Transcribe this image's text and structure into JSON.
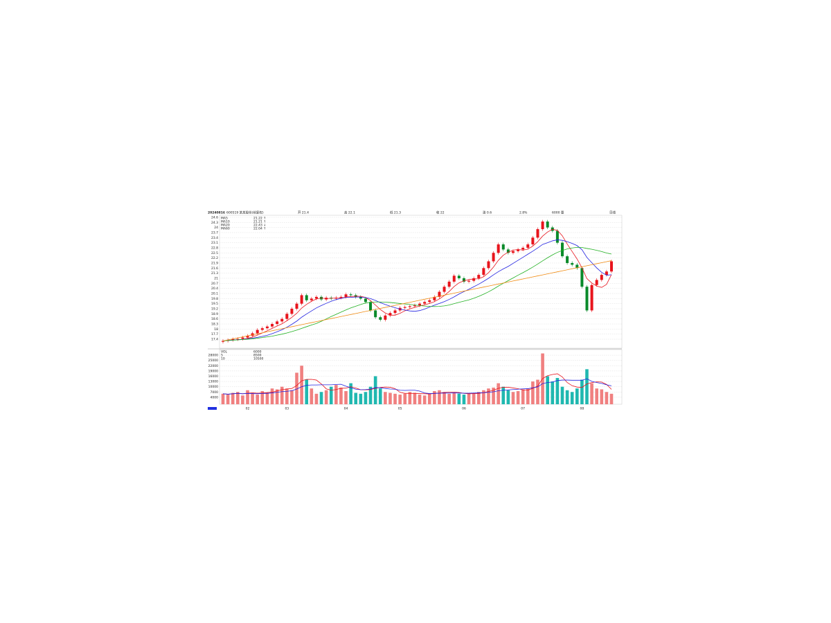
{
  "chart_data": {
    "type": "candlestick",
    "title": "20240816",
    "subtitle": "600519 某某股份(前复权)",
    "header": [
      "开 21.4",
      "高 22.1",
      "低 21.3",
      "收 22",
      "涨 0.6",
      "2.8%",
      "6000 量"
    ],
    "period": "日线",
    "categories": [
      null,
      null,
      null,
      null,
      null,
      "02",
      null,
      null,
      null,
      null,
      null,
      null,
      null,
      "03",
      null,
      null,
      null,
      null,
      null,
      null,
      null,
      null,
      null,
      null,
      null,
      "04",
      null,
      null,
      null,
      null,
      null,
      null,
      null,
      null,
      null,
      null,
      "05",
      null,
      null,
      null,
      null,
      null,
      null,
      null,
      null,
      null,
      null,
      null,
      null,
      "06",
      null,
      null,
      null,
      null,
      null,
      null,
      null,
      null,
      null,
      null,
      null,
      "07",
      null,
      null,
      null,
      null,
      null,
      null,
      null,
      null,
      null,
      null,
      null,
      "08",
      null,
      null,
      null,
      null,
      null,
      null
    ],
    "open": [
      17.25,
      17.3,
      17.35,
      17.4,
      17.42,
      17.5,
      17.6,
      17.75,
      17.95,
      18.05,
      18.15,
      18.3,
      18.45,
      18.6,
      18.9,
      19.2,
      19.5,
      20.0,
      19.7,
      19.8,
      19.9,
      19.75,
      19.85,
      19.8,
      19.85,
      19.9,
      20.05,
      20.0,
      19.9,
      19.8,
      19.6,
      19.1,
      18.7,
      18.55,
      18.8,
      18.95,
      19.1,
      19.25,
      19.3,
      19.35,
      19.4,
      19.5,
      19.6,
      19.7,
      19.9,
      20.2,
      20.5,
      20.8,
      21.15,
      21.0,
      20.8,
      20.85,
      21.0,
      21.2,
      21.6,
      22.0,
      22.5,
      23.0,
      22.7,
      22.5,
      22.6,
      22.7,
      22.8,
      23.0,
      23.4,
      23.9,
      24.35,
      24.0,
      23.8,
      23.1,
      22.3,
      21.9,
      21.8,
      21.6,
      20.5,
      19.1,
      20.6,
      20.9,
      21.2,
      21.4
    ],
    "high": [
      17.4,
      17.45,
      17.5,
      17.52,
      17.6,
      17.7,
      17.85,
      18.05,
      18.15,
      18.25,
      18.4,
      18.55,
      18.7,
      19.0,
      19.3,
      19.6,
      20.1,
      20.1,
      19.9,
      20.0,
      20.0,
      19.95,
      19.95,
      19.95,
      20.0,
      20.15,
      20.15,
      20.1,
      20.0,
      19.9,
      19.7,
      19.2,
      18.8,
      18.9,
      19.05,
      19.2,
      19.35,
      19.4,
      19.45,
      19.5,
      19.6,
      19.7,
      19.8,
      20.0,
      20.3,
      20.6,
      20.9,
      21.25,
      21.25,
      21.1,
      20.95,
      21.1,
      21.3,
      21.7,
      22.1,
      22.6,
      23.1,
      23.1,
      22.8,
      22.7,
      22.8,
      22.9,
      23.1,
      23.5,
      24.0,
      24.45,
      24.45,
      24.1,
      23.9,
      23.2,
      22.4,
      22.0,
      21.9,
      21.7,
      20.6,
      20.7,
      21.0,
      21.3,
      21.5,
      22.1
    ],
    "low": [
      17.15,
      17.2,
      17.25,
      17.3,
      17.32,
      17.4,
      17.5,
      17.65,
      17.85,
      17.95,
      18.05,
      18.2,
      18.35,
      18.5,
      18.8,
      19.1,
      19.4,
      19.6,
      19.6,
      19.7,
      19.65,
      19.65,
      19.7,
      19.7,
      19.75,
      19.8,
      19.9,
      19.8,
      19.7,
      19.5,
      19.0,
      18.6,
      18.45,
      18.45,
      18.7,
      18.85,
      19.0,
      19.15,
      19.2,
      19.25,
      19.3,
      19.4,
      19.5,
      19.6,
      19.8,
      20.1,
      20.4,
      20.7,
      20.9,
      20.7,
      20.7,
      20.75,
      20.9,
      21.1,
      21.5,
      21.9,
      22.4,
      22.6,
      22.4,
      22.4,
      22.5,
      22.6,
      22.7,
      22.9,
      23.3,
      23.8,
      23.9,
      23.7,
      23.0,
      22.2,
      21.8,
      21.7,
      21.5,
      20.4,
      19.0,
      19.0,
      20.5,
      20.8,
      21.1,
      21.3
    ],
    "close": [
      17.3,
      17.35,
      17.4,
      17.42,
      17.5,
      17.6,
      17.75,
      17.95,
      18.05,
      18.15,
      18.3,
      18.45,
      18.6,
      18.9,
      19.2,
      19.5,
      20.0,
      19.7,
      19.8,
      19.9,
      19.75,
      19.85,
      19.8,
      19.85,
      19.9,
      20.05,
      20.0,
      19.9,
      19.8,
      19.6,
      19.1,
      18.7,
      18.55,
      18.8,
      18.95,
      19.1,
      19.25,
      19.3,
      19.35,
      19.4,
      19.5,
      19.6,
      19.7,
      19.9,
      20.2,
      20.5,
      20.8,
      21.15,
      21.0,
      20.8,
      20.85,
      21.0,
      21.2,
      21.6,
      22.0,
      22.5,
      23.0,
      22.7,
      22.5,
      22.6,
      22.7,
      22.8,
      23.0,
      23.4,
      23.9,
      24.35,
      24.0,
      23.8,
      23.1,
      22.3,
      21.9,
      21.8,
      21.6,
      20.5,
      19.1,
      20.6,
      20.9,
      21.2,
      21.4,
      22.0
    ],
    "up_color": "#e8141c",
    "down_color": "#0a8a2a",
    "ylim": [
      16.87,
      24.72
    ],
    "yticks": [
      17.4,
      17.7,
      18,
      18.3,
      18.6,
      18.9,
      19.2,
      19.5,
      19.8,
      20.1,
      20.4,
      20.7,
      21,
      21.3,
      21.6,
      21.9,
      22.2,
      22.5,
      22.8,
      23.1,
      23.4,
      23.7,
      24,
      24.3,
      24.6
    ],
    "grid": true,
    "series": [
      {
        "name": "MA5",
        "color": "#e8141c",
        "legend_value": "21.22 ↑",
        "values": [
          17.3,
          17.33,
          17.35,
          17.37,
          17.39,
          17.45,
          17.53,
          17.64,
          17.77,
          17.9,
          18.04,
          18.18,
          18.31,
          18.49,
          18.69,
          18.93,
          19.24,
          19.46,
          19.64,
          19.78,
          19.83,
          19.8,
          19.82,
          19.83,
          19.83,
          19.89,
          19.92,
          19.94,
          19.93,
          19.87,
          19.68,
          19.42,
          19.15,
          18.95,
          18.82,
          18.82,
          18.93,
          19.08,
          19.19,
          19.28,
          19.36,
          19.43,
          19.51,
          19.62,
          19.78,
          19.98,
          20.22,
          20.51,
          20.73,
          20.85,
          20.92,
          20.96,
          20.97,
          21.09,
          21.33,
          21.66,
          22.06,
          22.36,
          22.54,
          22.66,
          22.7,
          22.66,
          22.72,
          22.9,
          23.16,
          23.49,
          23.73,
          23.89,
          23.83,
          23.51,
          23.02,
          22.58,
          22.14,
          21.62,
          20.98,
          20.72,
          20.54,
          20.46,
          20.64,
          21.22
        ]
      },
      {
        "name": "MA10",
        "color": "#2020e0",
        "legend_value": "21.21 ↑",
        "values": [
          17.3,
          17.33,
          17.35,
          17.37,
          17.39,
          17.42,
          17.46,
          17.51,
          17.57,
          17.63,
          17.73,
          17.84,
          17.96,
          18.11,
          18.28,
          18.47,
          18.7,
          18.89,
          19.07,
          19.25,
          19.39,
          19.52,
          19.64,
          19.74,
          19.81,
          19.87,
          19.87,
          19.89,
          19.89,
          19.86,
          19.8,
          19.69,
          19.56,
          19.45,
          19.35,
          19.26,
          19.18,
          19.12,
          19.07,
          19.05,
          19.09,
          19.18,
          19.3,
          19.41,
          19.51,
          19.62,
          19.75,
          19.9,
          20.07,
          20.21,
          20.35,
          20.5,
          20.65,
          20.82,
          21.0,
          21.2,
          21.39,
          21.55,
          21.7,
          21.88,
          22.06,
          22.24,
          22.42,
          22.6,
          22.79,
          23.0,
          23.1,
          23.21,
          23.27,
          23.24,
          23.16,
          23.06,
          22.93,
          22.69,
          22.23,
          21.92,
          21.61,
          21.35,
          21.18,
          21.21
        ]
      },
      {
        "name": "MA20",
        "color": "#20b020",
        "legend_value": "22.43 ↓",
        "values": [
          17.3,
          17.32,
          17.34,
          17.36,
          17.38,
          17.4,
          17.43,
          17.46,
          17.5,
          17.54,
          17.58,
          17.64,
          17.7,
          17.77,
          17.85,
          17.94,
          18.04,
          18.14,
          18.24,
          18.33,
          18.46,
          18.6,
          18.74,
          18.87,
          19.0,
          19.13,
          19.25,
          19.35,
          19.45,
          19.54,
          19.58,
          19.6,
          19.6,
          19.59,
          19.57,
          19.54,
          19.51,
          19.48,
          19.45,
          19.42,
          19.39,
          19.36,
          19.34,
          19.33,
          19.34,
          19.37,
          19.42,
          19.5,
          19.58,
          19.65,
          19.72,
          19.82,
          19.93,
          20.06,
          20.2,
          20.36,
          20.54,
          20.7,
          20.86,
          21.02,
          21.18,
          21.33,
          21.49,
          21.66,
          21.84,
          22.03,
          22.21,
          22.38,
          22.53,
          22.64,
          22.73,
          22.79,
          22.83,
          22.82,
          22.76,
          22.71,
          22.65,
          22.58,
          22.49,
          22.43
        ]
      },
      {
        "name": "MA60",
        "color": "#f08a10",
        "legend_value": "22.04 ↑",
        "values": [
          17.3,
          17.36,
          17.42,
          17.48,
          17.54,
          17.6,
          17.66,
          17.72,
          17.78,
          17.84,
          17.9,
          17.96,
          18.02,
          18.08,
          18.14,
          18.2,
          18.26,
          18.32,
          18.38,
          18.44,
          18.5,
          18.56,
          18.62,
          18.68,
          18.74,
          18.8,
          18.86,
          18.92,
          18.98,
          19.04,
          19.1,
          19.16,
          19.22,
          19.28,
          19.34,
          19.4,
          19.46,
          19.52,
          19.58,
          19.64,
          19.7,
          19.76,
          19.82,
          19.88,
          19.94,
          20.0,
          20.06,
          20.12,
          20.18,
          20.24,
          20.3,
          20.36,
          20.42,
          20.48,
          20.54,
          20.6,
          20.66,
          20.72,
          20.78,
          20.84,
          20.9,
          20.96,
          21.02,
          21.08,
          21.14,
          21.2,
          21.26,
          21.32,
          21.38,
          21.44,
          21.5,
          21.56,
          21.62,
          21.68,
          21.74,
          21.8,
          21.86,
          21.92,
          21.98,
          22.04
        ]
      }
    ],
    "volume": {
      "type": "bar",
      "name": "VOL",
      "legend_value": "6000",
      "up_color": "#f08080",
      "down_color": "#20b8b0",
      "ylim": [
        0,
        31200
      ],
      "yticks": [
        4000,
        7000,
        10000,
        13000,
        16000,
        19000,
        22000,
        25000,
        28000
      ],
      "values": [
        6000,
        5500,
        6500,
        7000,
        5000,
        8000,
        6000,
        5500,
        7500,
        6500,
        9000,
        8500,
        10000,
        9000,
        8000,
        18000,
        22000,
        14000,
        9000,
        6000,
        7000,
        8000,
        10000,
        11000,
        9500,
        7500,
        12000,
        6500,
        6000,
        7000,
        10000,
        16000,
        9000,
        7000,
        6500,
        6000,
        5500,
        6000,
        7000,
        6500,
        5500,
        5000,
        6000,
        7500,
        8000,
        7000,
        6000,
        6500,
        6000,
        5500,
        6000,
        6500,
        7000,
        8000,
        9000,
        9500,
        12000,
        10000,
        8000,
        7000,
        7500,
        8500,
        9000,
        13000,
        14000,
        29000,
        16000,
        13000,
        15000,
        10000,
        8000,
        7000,
        9000,
        14000,
        20000,
        12000,
        9000,
        8500,
        7000,
        6000
      ],
      "series": [
        {
          "name": "5",
          "color": "#e8141c",
          "legend_value": "8500",
          "values": [
            6000,
            5750,
            6000,
            6250,
            6000,
            6300,
            6500,
            6300,
            6400,
            6700,
            6900,
            7600,
            8300,
            8700,
            9000,
            10700,
            13400,
            14200,
            14200,
            13800,
            11600,
            8800,
            8000,
            8400,
            9100,
            9200,
            10000,
            9300,
            8300,
            8200,
            8400,
            9100,
            9600,
            9800,
            9700,
            8900,
            6800,
            6200,
            6200,
            6200,
            6100,
            6000,
            5900,
            6200,
            6400,
            6700,
            6900,
            6900,
            6700,
            6200,
            6000,
            6100,
            6200,
            6600,
            7300,
            8000,
            9100,
            9700,
            9700,
            9300,
            8900,
            8200,
            8000,
            9100,
            10400,
            14700,
            16300,
            17000,
            17400,
            15600,
            12400,
            10600,
            9800,
            9600,
            11600,
            12400,
            12800,
            12700,
            11300,
            8500
          ]
        },
        {
          "name": "10",
          "color": "#2020e0",
          "legend_value": "10500",
          "values": [
            6000,
            5750,
            6000,
            6250,
            6000,
            6200,
            6100,
            6000,
            6200,
            6200,
            6500,
            6800,
            7200,
            7400,
            7700,
            8700,
            10000,
            10800,
            11000,
            11000,
            11100,
            11100,
            11100,
            11300,
            11400,
            10300,
            9400,
            8600,
            8300,
            8400,
            8700,
            9500,
            9400,
            9000,
            8700,
            8600,
            8000,
            7900,
            8000,
            8000,
            7500,
            6400,
            6100,
            6200,
            6300,
            6400,
            6400,
            6500,
            6400,
            6300,
            6300,
            6400,
            6500,
            6600,
            6800,
            7100,
            7700,
            8000,
            8200,
            8400,
            8600,
            8800,
            8900,
            9400,
            9900,
            11800,
            12400,
            12700,
            13500,
            13800,
            13800,
            13700,
            13700,
            13700,
            14500,
            13100,
            12400,
            11900,
            11100,
            10500
          ]
        }
      ]
    }
  }
}
